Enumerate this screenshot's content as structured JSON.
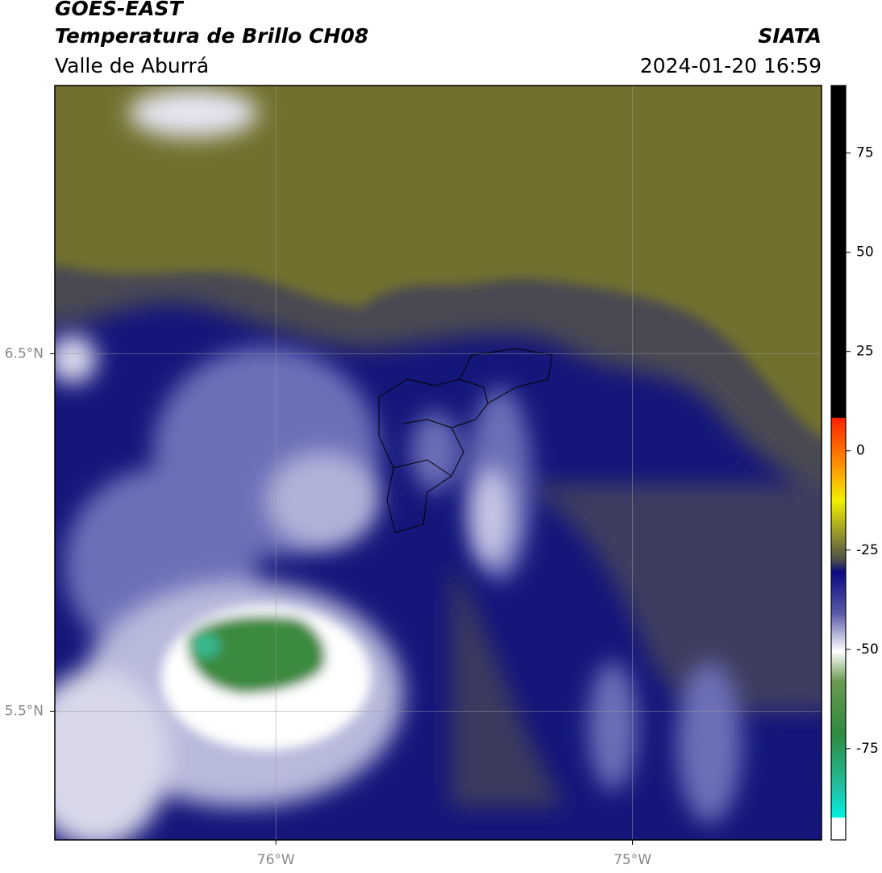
{
  "header": {
    "title": "GOES-EAST",
    "subtitle": "Temperatura de Brillo CH08",
    "region": "Valle de Aburrá",
    "source": "SIATA",
    "datetime": "2024-01-20 16:59"
  },
  "map": {
    "xlim": [
      -76.62,
      -74.47
    ],
    "ylim": [
      5.14,
      7.25
    ],
    "xticks": [
      {
        "value": -76,
        "label": "76°W"
      },
      {
        "value": -75,
        "label": "75°W"
      }
    ],
    "yticks": [
      {
        "value": 6.5,
        "label": "6.5°N"
      },
      {
        "value": 5.5,
        "label": "5.5°N"
      }
    ]
  },
  "colorbar": {
    "range": [
      -98,
      92
    ],
    "ticks": [
      75,
      50,
      25,
      0,
      -25,
      -50,
      -75
    ]
  }
}
